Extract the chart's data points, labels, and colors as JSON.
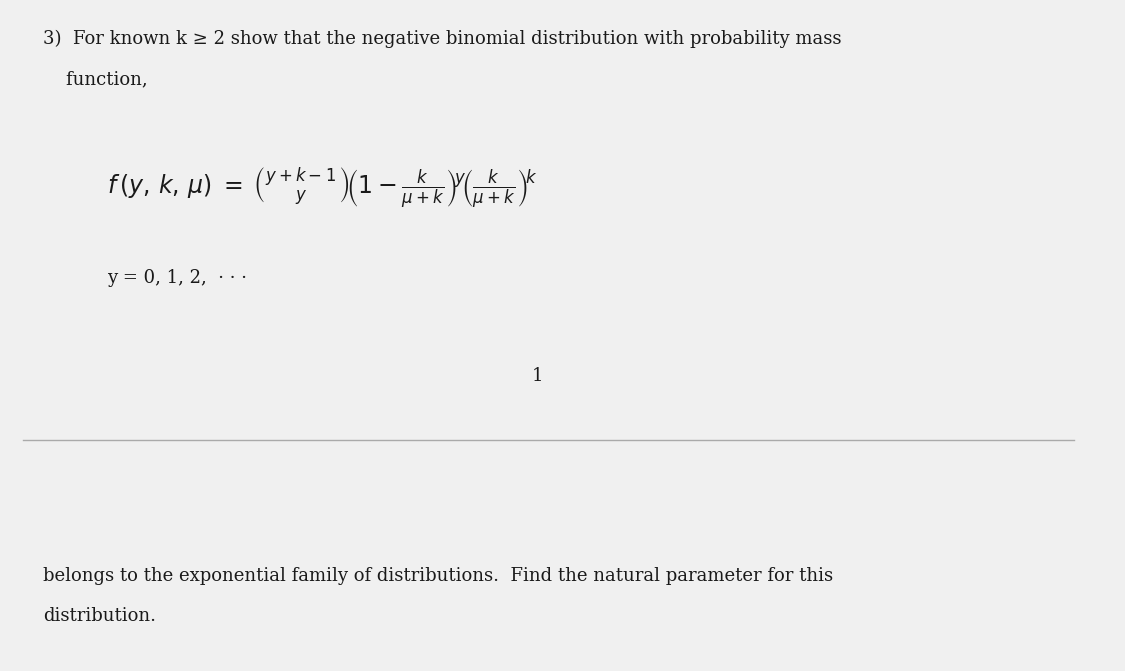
{
  "background_color": "#f0f0f0",
  "text_color": "#1a1a1a",
  "line_color": "#aaaaaa",
  "right_bar_color": "#b0b0b0",
  "fig_width": 11.25,
  "fig_height": 6.71,
  "header_line1": "3)  For known k ≥ 2 show that the negative binomial distribution with probability mass",
  "header_line2": "    function,",
  "footer_line1": "belongs to the exponential family of distributions.  Find the natural parameter for this",
  "footer_line2": "distribution.",
  "page_number": "1",
  "y_range_text": "y = 0, 1, 2,  · · ·",
  "formula": "$f\\,(y,\\,k,\\,\\mu) = \\left(\\!\\begin{array}{c}y+k-1\\\\ y\\end{array}\\!\\right)\\left(1 - \\frac{k}{\\mu+k}\\right)^{\\!y}\\!\\left(\\frac{k}{\\mu+k}\\right)^{\\!k}$"
}
